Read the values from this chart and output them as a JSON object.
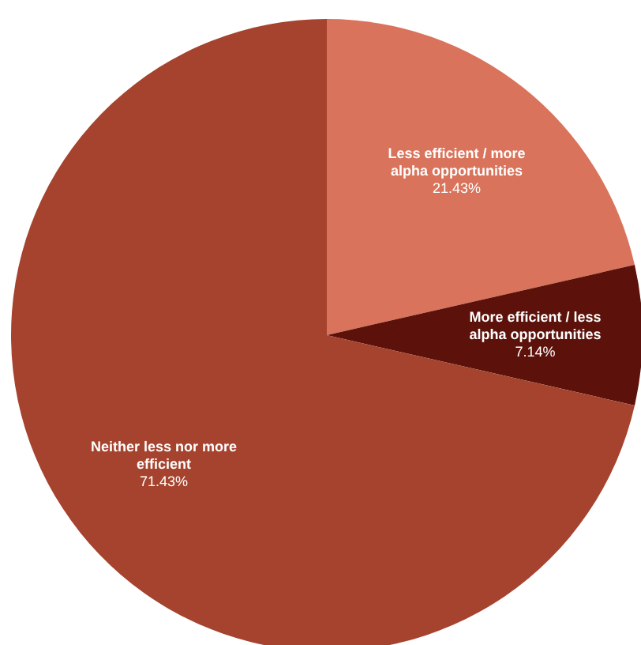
{
  "chart_data": {
    "type": "pie",
    "categories": [
      "Less efficient / more alpha opportunities",
      "More efficient / less alpha opportunities",
      "Neither less nor more efficient"
    ],
    "values": [
      21.43,
      7.14,
      71.43
    ],
    "colors": [
      "#d9735b",
      "#5c120a",
      "#a5432e"
    ],
    "value_labels": [
      "21.43%",
      "7.14%",
      "71.43%"
    ]
  }
}
